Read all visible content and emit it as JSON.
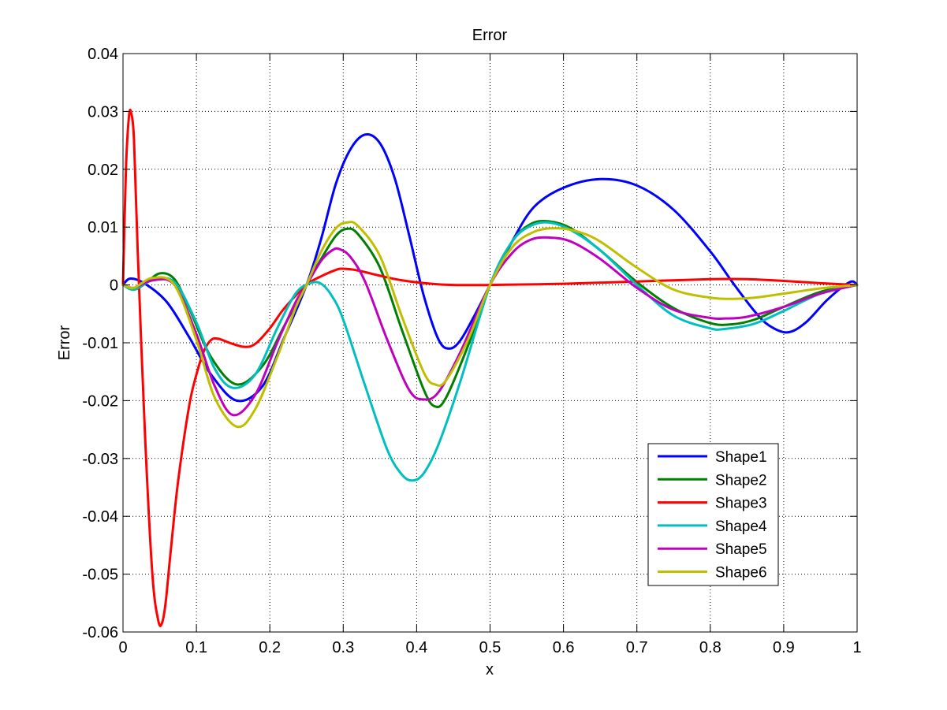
{
  "chart_data": {
    "type": "line",
    "title": "Error",
    "xlabel": "x",
    "ylabel": "Error",
    "xlim": [
      0,
      1
    ],
    "ylim": [
      -0.06,
      0.04
    ],
    "xticks": [
      0,
      0.1,
      0.2,
      0.3,
      0.4,
      0.5,
      0.6,
      0.7,
      0.8,
      0.9,
      1
    ],
    "xtick_labels": [
      "0",
      "0.1",
      "0.2",
      "0.3",
      "0.4",
      "0.5",
      "0.6",
      "0.7",
      "0.8",
      "0.9",
      "1"
    ],
    "yticks": [
      -0.06,
      -0.05,
      -0.04,
      -0.03,
      -0.02,
      -0.01,
      0,
      0.01,
      0.02,
      0.03,
      0.04
    ],
    "ytick_labels": [
      "-0.06",
      "-0.05",
      "-0.04",
      "-0.03",
      "-0.02",
      "-0.01",
      "0",
      "0.01",
      "0.02",
      "0.03",
      "0.04"
    ],
    "grid": true,
    "legend_position": "lower-right",
    "series": [
      {
        "name": "Shape1",
        "color": "#0000ff",
        "x": [
          0,
          0.01,
          0.03,
          0.06,
          0.09,
          0.12,
          0.155,
          0.19,
          0.22,
          0.25,
          0.27,
          0.29,
          0.31,
          0.33,
          0.35,
          0.37,
          0.39,
          0.41,
          0.43,
          0.445,
          0.46,
          0.48,
          0.5,
          0.53,
          0.56,
          0.6,
          0.65,
          0.7,
          0.75,
          0.8,
          0.83,
          0.86,
          0.88,
          0.905,
          0.93,
          0.96,
          0.99,
          1
        ],
        "y": [
          0,
          0.0011,
          0.0002,
          -0.003,
          -0.009,
          -0.0155,
          -0.02,
          -0.0175,
          -0.009,
          0,
          0.008,
          0.0175,
          0.0235,
          0.026,
          0.0245,
          0.0185,
          0.0085,
          -0.002,
          -0.0095,
          -0.011,
          -0.0095,
          -0.005,
          0,
          0.0075,
          0.0135,
          0.0168,
          0.0183,
          0.0172,
          0.013,
          0.0058,
          0.0005,
          -0.0045,
          -0.007,
          -0.0082,
          -0.0065,
          -0.0025,
          0.0005,
          0
        ]
      },
      {
        "name": "Shape2",
        "color": "#007f00",
        "x": [
          0,
          0.015,
          0.03,
          0.05,
          0.07,
          0.09,
          0.12,
          0.155,
          0.19,
          0.22,
          0.25,
          0.27,
          0.29,
          0.305,
          0.32,
          0.35,
          0.38,
          0.41,
          0.425,
          0.44,
          0.47,
          0.5,
          0.53,
          0.555,
          0.58,
          0.61,
          0.65,
          0.7,
          0.75,
          0.8,
          0.83,
          0.86,
          0.9,
          0.95,
          1
        ],
        "y": [
          0,
          -0.0008,
          0.0002,
          0.002,
          0.001,
          -0.004,
          -0.0125,
          -0.0172,
          -0.014,
          -0.007,
          0,
          0.0045,
          0.0085,
          0.0097,
          0.0088,
          0.003,
          -0.0078,
          -0.0182,
          -0.021,
          -0.0195,
          -0.0105,
          0,
          0.0075,
          0.0105,
          0.011,
          0.0098,
          0.006,
          0.0005,
          -0.004,
          -0.0066,
          -0.0068,
          -0.006,
          -0.0038,
          -0.0012,
          0
        ]
      },
      {
        "name": "Shape3",
        "color": "#ff0000",
        "x": [
          0,
          0.004,
          0.008,
          0.011,
          0.015,
          0.02,
          0.03,
          0.04,
          0.048,
          0.053,
          0.058,
          0.065,
          0.075,
          0.09,
          0.1,
          0.11,
          0.12,
          0.13,
          0.145,
          0.165,
          0.18,
          0.2,
          0.22,
          0.25,
          0.27,
          0.29,
          0.3,
          0.32,
          0.35,
          0.38,
          0.42,
          0.45,
          0.5,
          0.6,
          0.7,
          0.8,
          0.85,
          0.9,
          0.95,
          1
        ],
        "y": [
          0,
          0.02,
          0.029,
          0.0298,
          0.025,
          0.006,
          -0.026,
          -0.05,
          -0.058,
          -0.0585,
          -0.055,
          -0.046,
          -0.034,
          -0.021,
          -0.0155,
          -0.0115,
          -0.0095,
          -0.0093,
          -0.01,
          -0.0107,
          -0.0102,
          -0.0075,
          -0.004,
          0,
          0.0015,
          0.0026,
          0.0028,
          0.0025,
          0.0016,
          0.0008,
          0.0002,
          0,
          0,
          0.0002,
          0.0006,
          0.001,
          0.001,
          0.0007,
          0.0003,
          0
        ]
      },
      {
        "name": "Shape4",
        "color": "#00bfbf",
        "x": [
          0,
          0.015,
          0.04,
          0.07,
          0.1,
          0.125,
          0.15,
          0.18,
          0.21,
          0.235,
          0.255,
          0.27,
          0.285,
          0.3,
          0.33,
          0.36,
          0.38,
          0.395,
          0.41,
          0.43,
          0.46,
          0.5,
          0.53,
          0.555,
          0.58,
          0.61,
          0.65,
          0.7,
          0.75,
          0.8,
          0.82,
          0.86,
          0.9,
          0.95,
          1
        ],
        "y": [
          0,
          -0.0008,
          0.0008,
          0.0005,
          -0.0065,
          -0.0145,
          -0.0178,
          -0.0155,
          -0.0075,
          -0.0015,
          0.0003,
          0.0002,
          -0.002,
          -0.006,
          -0.0175,
          -0.0285,
          -0.0328,
          -0.0338,
          -0.0325,
          -0.0275,
          -0.0165,
          0,
          0.0075,
          0.0102,
          0.0108,
          0.0095,
          0.006,
          0,
          -0.0053,
          -0.0075,
          -0.0076,
          -0.0067,
          -0.0045,
          -0.0015,
          0
        ]
      },
      {
        "name": "Shape5",
        "color": "#bf00bf",
        "x": [
          0,
          0.015,
          0.04,
          0.07,
          0.1,
          0.125,
          0.15,
          0.18,
          0.21,
          0.235,
          0.25,
          0.27,
          0.285,
          0.295,
          0.31,
          0.33,
          0.36,
          0.39,
          0.41,
          0.43,
          0.46,
          0.5,
          0.53,
          0.555,
          0.58,
          0.61,
          0.65,
          0.7,
          0.75,
          0.8,
          0.82,
          0.85,
          0.9,
          0.95,
          1
        ],
        "y": [
          0,
          -0.0005,
          0.0008,
          0,
          -0.0085,
          -0.0175,
          -0.0225,
          -0.019,
          -0.01,
          -0.003,
          0,
          0.0042,
          0.006,
          0.0062,
          0.0048,
          0.0005,
          -0.0095,
          -0.0182,
          -0.0198,
          -0.0185,
          -0.0115,
          0,
          0.0055,
          0.0078,
          0.0082,
          0.0075,
          0.0045,
          -0.0005,
          -0.0043,
          -0.0057,
          -0.0058,
          -0.0055,
          -0.0038,
          -0.0015,
          0
        ]
      },
      {
        "name": "Shape6",
        "color": "#bfbf00",
        "x": [
          0,
          0.015,
          0.04,
          0.07,
          0.1,
          0.125,
          0.155,
          0.18,
          0.21,
          0.235,
          0.25,
          0.27,
          0.29,
          0.305,
          0.32,
          0.35,
          0.38,
          0.41,
          0.425,
          0.44,
          0.47,
          0.5,
          0.53,
          0.56,
          0.59,
          0.62,
          0.65,
          0.7,
          0.75,
          0.8,
          0.83,
          0.86,
          0.9,
          0.95,
          1
        ],
        "y": [
          0,
          -0.0005,
          0.0012,
          0,
          -0.0095,
          -0.0195,
          -0.0245,
          -0.0215,
          -0.0125,
          -0.004,
          0,
          0.0058,
          0.0098,
          0.0108,
          0.0102,
          0.005,
          -0.0055,
          -0.0152,
          -0.0172,
          -0.0165,
          -0.0095,
          0,
          0.0065,
          0.0092,
          0.0098,
          0.0092,
          0.0075,
          0.003,
          -0.0008,
          -0.0022,
          -0.0024,
          -0.0022,
          -0.0015,
          -0.0006,
          0
        ]
      }
    ]
  }
}
